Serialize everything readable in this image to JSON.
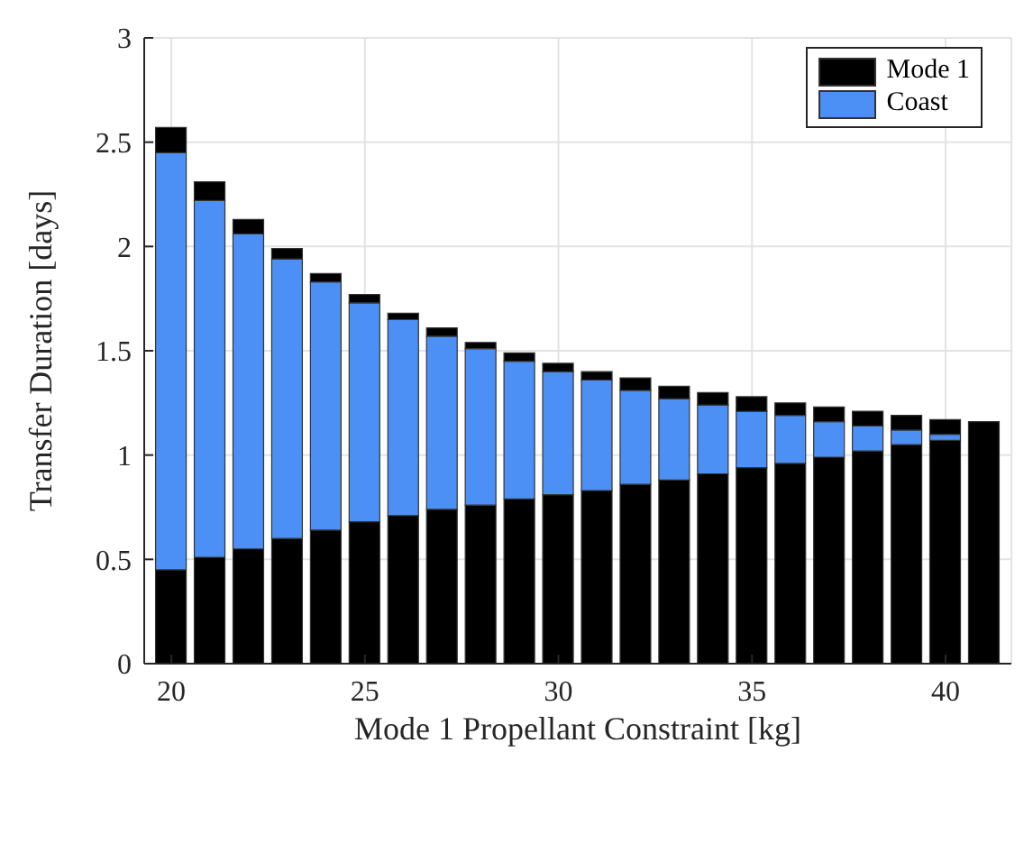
{
  "chart_data": {
    "type": "bar",
    "stacked": true,
    "xlabel": "Mode 1 Propellant Constraint [kg]",
    "ylabel": "Transfer Duration [days]",
    "x": [
      20,
      21,
      22,
      23,
      24,
      25,
      26,
      27,
      28,
      29,
      30,
      31,
      32,
      33,
      34,
      35,
      36,
      37,
      38,
      39,
      40,
      41
    ],
    "series": [
      {
        "name": "Mode 1",
        "color": "#000000",
        "values": [
          0.45,
          0.51,
          0.55,
          0.6,
          0.64,
          0.68,
          0.71,
          0.74,
          0.76,
          0.79,
          0.81,
          0.83,
          0.86,
          0.88,
          0.91,
          0.94,
          0.96,
          0.99,
          1.02,
          1.05,
          1.07,
          1.16
        ]
      },
      {
        "name": "Coast",
        "color": "#4d90f5",
        "values": [
          2.0,
          1.71,
          1.51,
          1.34,
          1.19,
          1.05,
          0.94,
          0.83,
          0.75,
          0.66,
          0.59,
          0.53,
          0.45,
          0.39,
          0.33,
          0.27,
          0.23,
          0.17,
          0.12,
          0.07,
          0.03,
          0
        ]
      },
      {
        "color": "#000000",
        "values": [
          0.12,
          0.09,
          0.07,
          0.05,
          0.04,
          0.04,
          0.03,
          0.04,
          0.03,
          0.04,
          0.04,
          0.04,
          0.06,
          0.06,
          0.06,
          0.07,
          0.06,
          0.07,
          0.07,
          0.07,
          0.07,
          0
        ]
      }
    ],
    "xlim": [
      19.3,
      41.7
    ],
    "xticks": [
      20,
      25,
      30,
      35,
      40
    ],
    "ylim": [
      0,
      3
    ],
    "yticks": [
      0,
      0.5,
      1,
      1.5,
      2,
      2.5,
      3
    ],
    "grid": true,
    "legend": "top right"
  }
}
